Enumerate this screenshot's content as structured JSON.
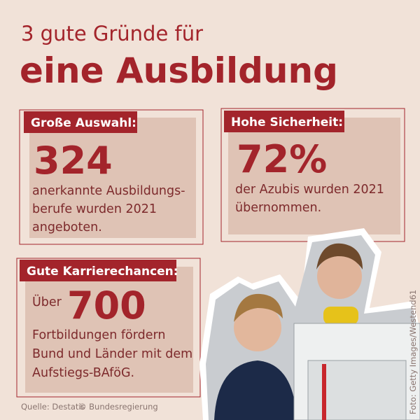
{
  "header": {
    "title_line1": "3 gute Gründe für",
    "title_line2": "eine Ausbildung"
  },
  "cards": [
    {
      "label": "Große Auswahl:",
      "number": "324",
      "lines": [
        "anerkannte Ausbildungs-",
        "berufe wurden 2021",
        "angeboten."
      ]
    },
    {
      "label": "Hohe Sicherheit:",
      "number": "72%",
      "lines": [
        "der Azubis wurden 2021",
        "übernommen."
      ]
    },
    {
      "label": "Gute Karrierechancen:",
      "prefix": "Über",
      "number": "700",
      "lines": [
        "Fortbildungen fördern",
        "Bund und Länder mit dem",
        "Aufstiegs-BAföG."
      ]
    }
  ],
  "footer": {
    "source": "Quelle: Destatis",
    "copyright": "© Bundesregierung",
    "photo_credit": "Foto: Getty Images/Westend61"
  }
}
